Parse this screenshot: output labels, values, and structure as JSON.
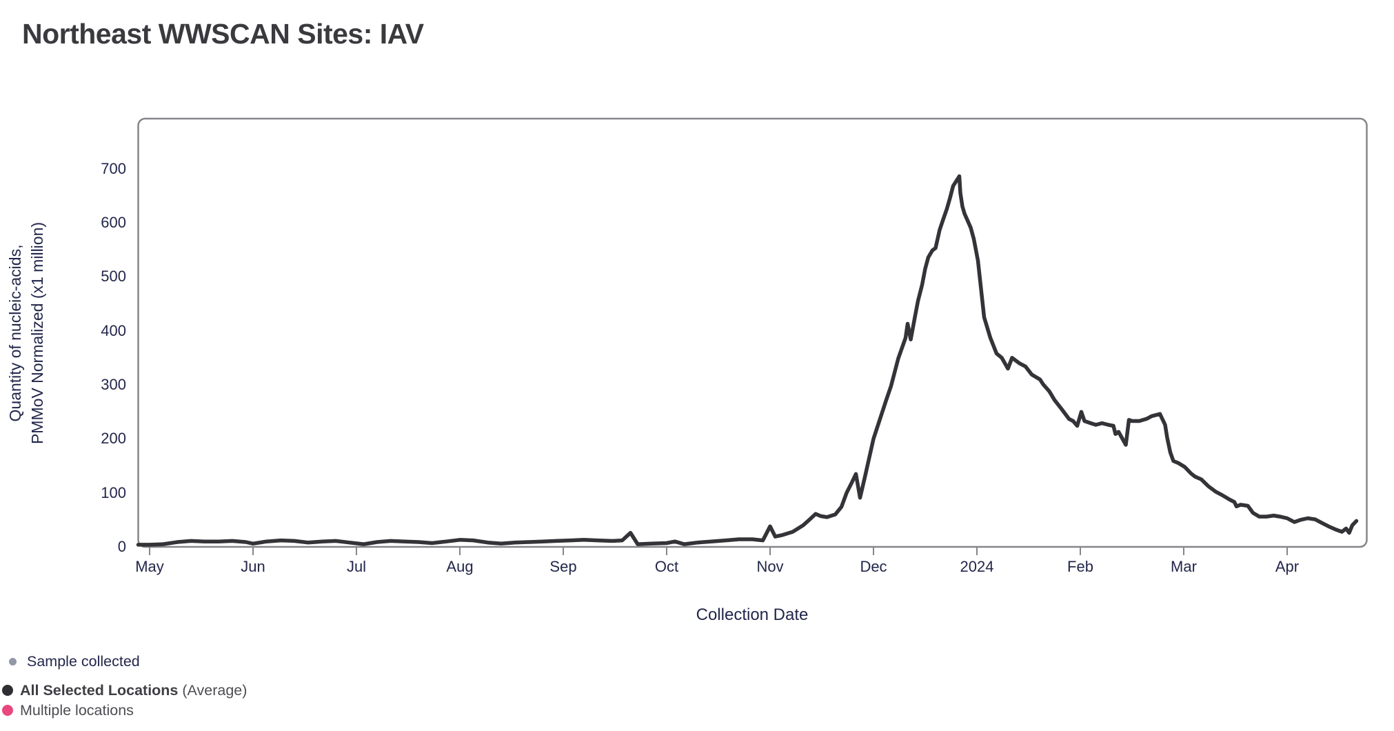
{
  "title": "Northeast WWSCAN Sites: IAV",
  "chart_data": {
    "type": "line",
    "title": "Northeast WWSCAN Sites: IAV",
    "x_axis": {
      "title": "Collection Date",
      "tick_labels": [
        "May",
        "Jun",
        "Jul",
        "Aug",
        "Sep",
        "Oct",
        "Nov",
        "Dec",
        "2024",
        "Feb",
        "Mar",
        "Apr"
      ],
      "unit": "month index from May (0 = May tick)",
      "range": [
        -0.113,
        11.773
      ]
    },
    "y_axis": {
      "title": "Quantity of nucleic-acids,\nPMMoV Normalized (x1 million)",
      "ticks": [
        0,
        100,
        200,
        300,
        400,
        500,
        600,
        700
      ],
      "range": [
        0,
        793
      ]
    },
    "grid": false,
    "legend_position": "bottom-left",
    "series": [
      {
        "name": "All Selected Locations (Average)",
        "color": "#333338",
        "points": [
          [
            -0.11,
            4
          ],
          [
            0,
            4
          ],
          [
            0.13,
            5
          ],
          [
            0.27,
            9
          ],
          [
            0.4,
            11
          ],
          [
            0.53,
            10
          ],
          [
            0.67,
            10
          ],
          [
            0.8,
            11
          ],
          [
            0.93,
            9
          ],
          [
            1.0,
            6
          ],
          [
            1.13,
            10
          ],
          [
            1.27,
            12
          ],
          [
            1.4,
            11
          ],
          [
            1.53,
            8
          ],
          [
            1.67,
            10
          ],
          [
            1.8,
            11
          ],
          [
            1.93,
            8
          ],
          [
            2.07,
            5
          ],
          [
            2.2,
            9
          ],
          [
            2.33,
            11
          ],
          [
            2.47,
            10
          ],
          [
            2.6,
            9
          ],
          [
            2.73,
            7
          ],
          [
            2.87,
            10
          ],
          [
            3.0,
            13
          ],
          [
            3.13,
            12
          ],
          [
            3.27,
            8
          ],
          [
            3.4,
            6
          ],
          [
            3.53,
            8
          ],
          [
            3.67,
            9
          ],
          [
            3.8,
            10
          ],
          [
            3.93,
            11
          ],
          [
            4.07,
            12
          ],
          [
            4.2,
            13
          ],
          [
            4.33,
            12
          ],
          [
            4.47,
            11
          ],
          [
            4.57,
            12
          ],
          [
            4.65,
            26
          ],
          [
            4.72,
            5
          ],
          [
            4.85,
            6
          ],
          [
            5.0,
            7
          ],
          [
            5.08,
            10
          ],
          [
            5.17,
            5
          ],
          [
            5.3,
            8
          ],
          [
            5.43,
            10
          ],
          [
            5.57,
            12
          ],
          [
            5.7,
            14
          ],
          [
            5.83,
            14
          ],
          [
            5.93,
            12
          ],
          [
            6.0,
            38
          ],
          [
            6.05,
            19
          ],
          [
            6.12,
            22
          ],
          [
            6.22,
            28
          ],
          [
            6.32,
            40
          ],
          [
            6.39,
            52
          ],
          [
            6.44,
            61
          ],
          [
            6.49,
            57
          ],
          [
            6.55,
            55
          ],
          [
            6.63,
            60
          ],
          [
            6.69,
            74
          ],
          [
            6.74,
            100
          ],
          [
            6.79,
            119
          ],
          [
            6.83,
            135
          ],
          [
            6.87,
            91
          ],
          [
            6.92,
            132
          ],
          [
            7.0,
            200
          ],
          [
            7.06,
            235
          ],
          [
            7.12,
            270
          ],
          [
            7.17,
            298
          ],
          [
            7.24,
            349
          ],
          [
            7.31,
            387
          ],
          [
            7.33,
            413
          ],
          [
            7.36,
            384
          ],
          [
            7.4,
            425
          ],
          [
            7.43,
            455
          ],
          [
            7.47,
            485
          ],
          [
            7.5,
            515
          ],
          [
            7.53,
            536
          ],
          [
            7.57,
            549
          ],
          [
            7.6,
            553
          ],
          [
            7.64,
            587
          ],
          [
            7.67,
            604
          ],
          [
            7.71,
            626
          ],
          [
            7.74,
            646
          ],
          [
            7.77,
            668
          ],
          [
            7.83,
            686
          ],
          [
            7.84,
            655
          ],
          [
            7.86,
            630
          ],
          [
            7.88,
            617
          ],
          [
            7.91,
            604
          ],
          [
            7.94,
            591
          ],
          [
            7.97,
            570
          ],
          [
            8.01,
            530
          ],
          [
            8.07,
            425
          ],
          [
            8.13,
            387
          ],
          [
            8.19,
            358
          ],
          [
            8.24,
            350
          ],
          [
            8.3,
            330
          ],
          [
            8.34,
            350
          ],
          [
            8.41,
            340
          ],
          [
            8.47,
            334
          ],
          [
            8.53,
            319
          ],
          [
            8.61,
            310
          ],
          [
            8.64,
            301
          ],
          [
            8.7,
            288
          ],
          [
            8.75,
            272
          ],
          [
            8.82,
            255
          ],
          [
            8.89,
            237
          ],
          [
            8.93,
            233
          ],
          [
            8.97,
            224
          ],
          [
            9.01,
            250
          ],
          [
            9.04,
            233
          ],
          [
            9.1,
            229
          ],
          [
            9.15,
            226
          ],
          [
            9.21,
            229
          ],
          [
            9.27,
            226
          ],
          [
            9.32,
            224
          ],
          [
            9.34,
            209
          ],
          [
            9.37,
            213
          ],
          [
            9.44,
            189
          ],
          [
            9.47,
            235
          ],
          [
            9.5,
            233
          ],
          [
            9.57,
            233
          ],
          [
            9.64,
            237
          ],
          [
            9.69,
            242
          ],
          [
            9.77,
            246
          ],
          [
            9.82,
            226
          ],
          [
            9.84,
            202
          ],
          [
            9.87,
            175
          ],
          [
            9.9,
            159
          ],
          [
            9.95,
            155
          ],
          [
            10.01,
            148
          ],
          [
            10.07,
            136
          ],
          [
            10.11,
            130
          ],
          [
            10.17,
            125
          ],
          [
            10.24,
            112
          ],
          [
            10.31,
            102
          ],
          [
            10.37,
            96
          ],
          [
            10.44,
            88
          ],
          [
            10.49,
            83
          ],
          [
            10.51,
            75
          ],
          [
            10.55,
            78
          ],
          [
            10.62,
            76
          ],
          [
            10.67,
            63
          ],
          [
            10.73,
            56
          ],
          [
            10.8,
            56
          ],
          [
            10.87,
            58
          ],
          [
            10.93,
            56
          ],
          [
            11.0,
            53
          ],
          [
            11.07,
            46
          ],
          [
            11.13,
            50
          ],
          [
            11.2,
            53
          ],
          [
            11.27,
            51
          ],
          [
            11.33,
            45
          ],
          [
            11.4,
            38
          ],
          [
            11.47,
            32
          ],
          [
            11.53,
            28
          ],
          [
            11.57,
            34
          ],
          [
            11.6,
            26
          ],
          [
            11.63,
            40
          ],
          [
            11.67,
            48
          ]
        ]
      }
    ]
  },
  "legend": {
    "items": [
      {
        "label_bold": "",
        "label": "Sample collected",
        "color": "#9298a6",
        "dot_size": "small",
        "text_style": "navy"
      },
      {
        "label_bold": "All Selected Locations",
        "label": " (Average)",
        "color": "#2e2e33",
        "dot_size": "large",
        "text_style": "gray"
      },
      {
        "label_bold": "",
        "label": "Multiple locations",
        "color": "#e8487e",
        "dot_size": "large",
        "text_style": "gray"
      }
    ]
  },
  "colors": {
    "line": "#333338",
    "axis_border": "#85858a",
    "axis_text": "#22264a",
    "title_text": "#3a3a3e",
    "legend_text": "#4c4c52",
    "sample_dot": "#9298a6",
    "average_dot": "#2e2e33",
    "multiple_locations_dot": "#e8487e"
  }
}
